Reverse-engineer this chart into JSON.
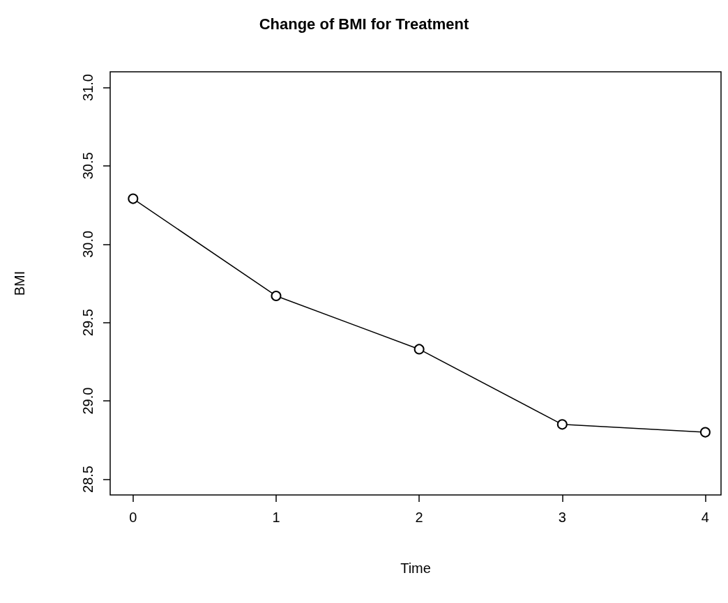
{
  "chart_data": {
    "type": "line",
    "title": "Change of BMI for Treatment",
    "xlabel": "Time",
    "ylabel": "BMI",
    "x": [
      0,
      1,
      2,
      3,
      4
    ],
    "series": [
      {
        "color": "#000000",
        "values": [
          30.29,
          29.67,
          29.33,
          28.85,
          28.8
        ]
      }
    ],
    "xlim": [
      -0.16,
      4.11
    ],
    "xticks": [
      0,
      1,
      2,
      3,
      4
    ],
    "ylim": [
      28.4,
      31.1
    ],
    "yticks": [
      {
        "value": 28.5,
        "label": "28.5"
      },
      {
        "value": 29,
        "label": "29.0"
      },
      {
        "value": 29.5,
        "label": "29.5"
      },
      {
        "value": 30,
        "label": "30.0"
      },
      {
        "value": 30.5,
        "label": "30.5"
      },
      {
        "value": 31,
        "label": "31.0"
      }
    ],
    "grid": false,
    "marker": "circle",
    "line_style": "solid"
  }
}
